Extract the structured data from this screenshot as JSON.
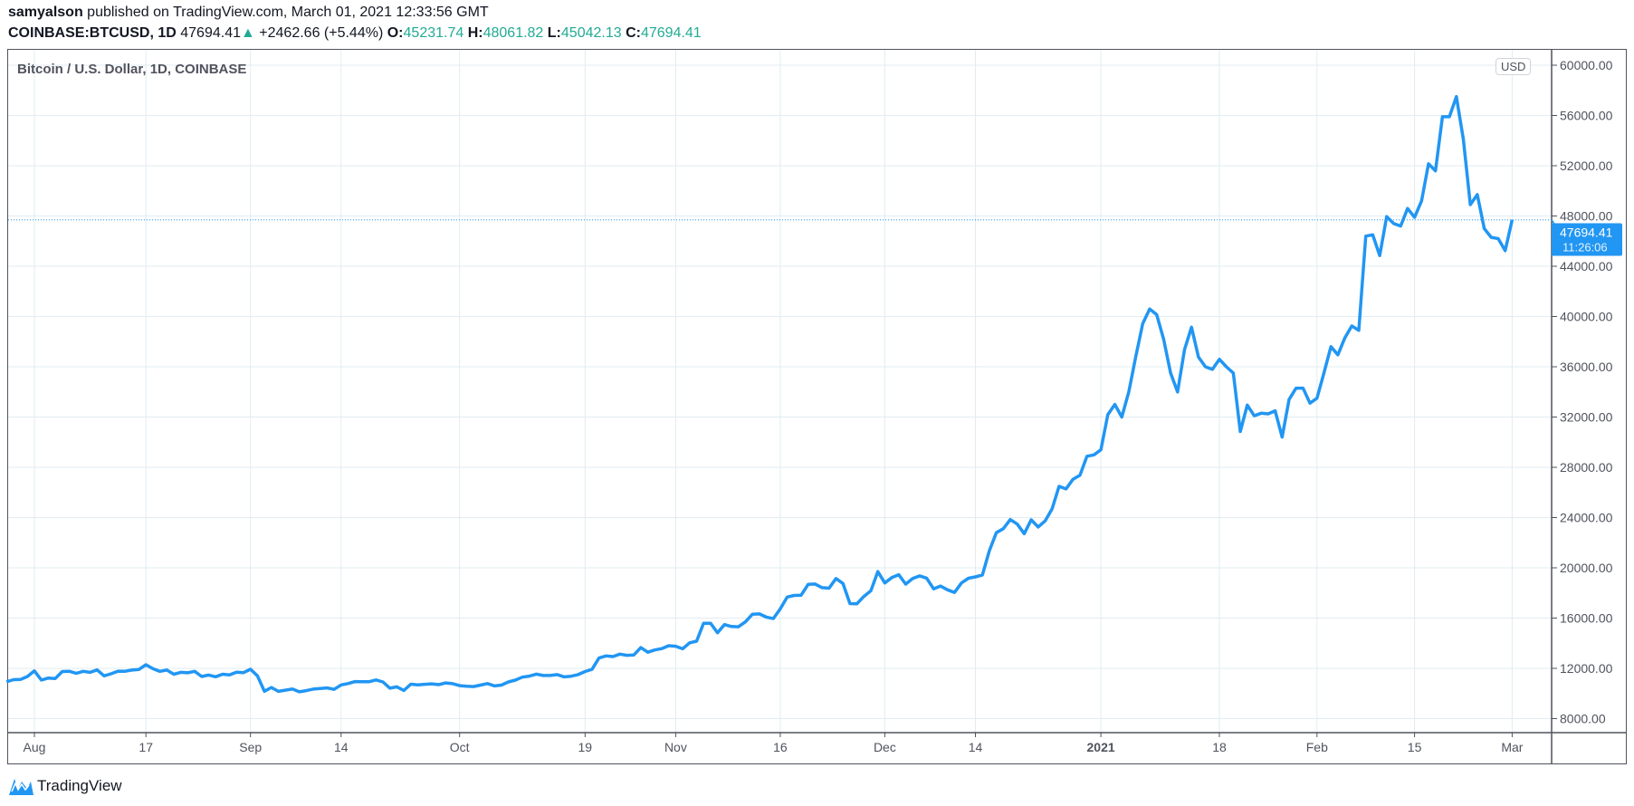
{
  "header": {
    "author": "samyalson",
    "published": "published on TradingView.com, March 01, 2021 12:33:56 GMT",
    "symbol": "COINBASE:BTCUSD, 1D",
    "last": "47694.41",
    "change": "+2462.66 (+5.44%)",
    "o_label": "O:",
    "o": "45231.74",
    "h_label": "H:",
    "h": "48061.82",
    "l_label": "L:",
    "l": "45042.13",
    "c_label": "C:",
    "c": "47694.41",
    "up_icon": "triangle-up"
  },
  "legend": "Bitcoin / U.S. Dollar, 1D, COINBASE",
  "currency_button": "USD",
  "footer": {
    "brand": "TradingView",
    "logo_icon": "tradingview-logo"
  },
  "colors": {
    "line": "#2196f3",
    "up": "#22ab94",
    "grid": "#e1ecf2"
  },
  "chart_data": {
    "type": "line",
    "title": "Bitcoin / U.S. Dollar, 1D, COINBASE",
    "ylim": [
      6000,
      61000
    ],
    "yticks": [
      8000,
      12000,
      16000,
      20000,
      24000,
      28000,
      32000,
      36000,
      40000,
      44000,
      48000,
      52000,
      56000,
      60000
    ],
    "ytick_labels": [
      "8000.00",
      "12000.00",
      "16000.00",
      "20000.00",
      "24000.00",
      "28000.00",
      "32000.00",
      "36000.00",
      "40000.00",
      "44000.00",
      "48000.00",
      "52000.00",
      "56000.00",
      "60000.00"
    ],
    "xticks": [
      {
        "date": "2020-08-01",
        "label": "Aug"
      },
      {
        "date": "2020-08-17",
        "label": "17"
      },
      {
        "date": "2020-09-01",
        "label": "Sep"
      },
      {
        "date": "2020-09-14",
        "label": "14"
      },
      {
        "date": "2020-10-01",
        "label": "Oct"
      },
      {
        "date": "2020-10-19",
        "label": "19"
      },
      {
        "date": "2020-11-01",
        "label": "Nov"
      },
      {
        "date": "2020-11-16",
        "label": "16"
      },
      {
        "date": "2020-12-01",
        "label": "Dec"
      },
      {
        "date": "2020-12-14",
        "label": "14"
      },
      {
        "date": "2021-01-01",
        "label": "2021",
        "bold": true
      },
      {
        "date": "2021-01-18",
        "label": "18"
      },
      {
        "date": "2021-02-01",
        "label": "Feb"
      },
      {
        "date": "2021-02-15",
        "label": "15"
      },
      {
        "date": "2021-03-01",
        "label": "Mar"
      }
    ],
    "last_price_label": "47694.41",
    "countdown": "11:26:06",
    "grid": true,
    "series": [
      {
        "dates_from": "2020-07-28",
        "dates_to": "2021-03-01",
        "interval": "1D",
        "values": [
          10930,
          11100,
          11110,
          11350,
          11800,
          11070,
          11230,
          11190,
          11750,
          11770,
          11600,
          11760,
          11680,
          11880,
          11400,
          11570,
          11780,
          11770,
          11860,
          11910,
          12290,
          11970,
          11760,
          11860,
          11530,
          11680,
          11650,
          11760,
          11350,
          11470,
          11330,
          11530,
          11480,
          11700,
          11660,
          11930,
          11400,
          10180,
          10480,
          10170,
          10260,
          10360,
          10130,
          10230,
          10350,
          10400,
          10440,
          10330,
          10680,
          10790,
          10950,
          10940,
          10930,
          11080,
          10920,
          10420,
          10530,
          10240,
          10740,
          10690,
          10730,
          10770,
          10700,
          10840,
          10780,
          10620,
          10570,
          10550,
          10670,
          10790,
          10600,
          10670,
          10920,
          11060,
          11300,
          11380,
          11540,
          11430,
          11430,
          11500,
          11320,
          11370,
          11500,
          11750,
          11920,
          12820,
          12990,
          12940,
          13130,
          13040,
          13070,
          13650,
          13280,
          13460,
          13570,
          13800,
          13760,
          13560,
          14030,
          14160,
          15590,
          15590,
          14830,
          15480,
          15330,
          15310,
          15700,
          16300,
          16330,
          16080,
          15960,
          16730,
          17670,
          17800,
          17820,
          18680,
          18710,
          18420,
          18380,
          19150,
          18750,
          17150,
          17140,
          17720,
          18180,
          19700,
          18800,
          19220,
          19450,
          18700,
          19150,
          19360,
          19180,
          18330,
          18550,
          18250,
          18040,
          18800,
          19170,
          19280,
          19430,
          21360,
          22800,
          23110,
          23840,
          23480,
          22720,
          23820,
          23250,
          23730,
          24690,
          26490,
          26280,
          27050,
          27370,
          28880,
          28990,
          29400,
          32200,
          33000,
          32000,
          34000,
          36800,
          39430,
          40600,
          40150,
          38200,
          35500,
          34000,
          37370,
          39150,
          36770,
          36000,
          35800,
          36600,
          36000,
          35500,
          30850,
          32950,
          32100,
          32300,
          32250,
          32500,
          30400,
          33400,
          34300,
          34300,
          33100,
          33500,
          35500,
          37600,
          36950,
          38300,
          39250,
          38900,
          46400,
          46500,
          44850,
          47950,
          47400,
          47200,
          48600,
          47900,
          49200,
          52150,
          51600,
          55900,
          55900,
          57500,
          54100,
          48900,
          49700,
          47000,
          46300,
          46200,
          45240,
          47694.41
        ]
      }
    ]
  }
}
